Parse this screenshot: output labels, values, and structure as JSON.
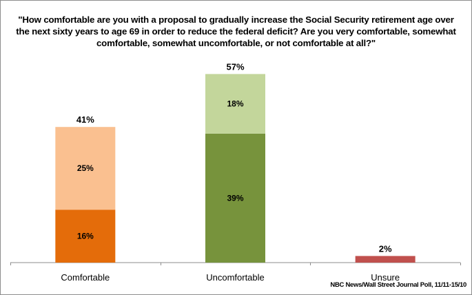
{
  "chart_data": {
    "type": "bar",
    "stacked": true,
    "title": "\"How comfortable are you with a proposal to gradually increase the Social Security retirement age over the next sixty years to age 69 in order to reduce the federal deficit? Are you very comfortable, somewhat comfortable, somewhat uncomfortable, or not comfortable at all?\"",
    "categories": [
      "Comfortable",
      "Uncomfortable",
      "Unsure"
    ],
    "stacks": [
      {
        "category": "Comfortable",
        "total_label": "41%",
        "total": 41,
        "segments": [
          {
            "name": "Very comfortable",
            "value": 16,
            "label": "16%",
            "color": "#E46C0A"
          },
          {
            "name": "Somewhat comfortable",
            "value": 25,
            "label": "25%",
            "color": "#FAC090"
          }
        ]
      },
      {
        "category": "Uncomfortable",
        "total_label": "57%",
        "total": 57,
        "segments": [
          {
            "name": "Not comfortable at all",
            "value": 39,
            "label": "39%",
            "color": "#77933C"
          },
          {
            "name": "Somewhat uncomfortable",
            "value": 18,
            "label": "18%",
            "color": "#C3D69B"
          }
        ]
      },
      {
        "category": "Unsure",
        "total_label": "2%",
        "total": 2,
        "segments": [
          {
            "name": "Unsure",
            "value": 2,
            "label": "",
            "color": "#C0504D"
          }
        ]
      }
    ],
    "xlabel": "",
    "ylabel": "",
    "ylim": [
      0,
      60
    ],
    "grid": false,
    "legend": "none",
    "source": "NBC News/Wall Street Journal Poll, 11/11-15/10"
  }
}
